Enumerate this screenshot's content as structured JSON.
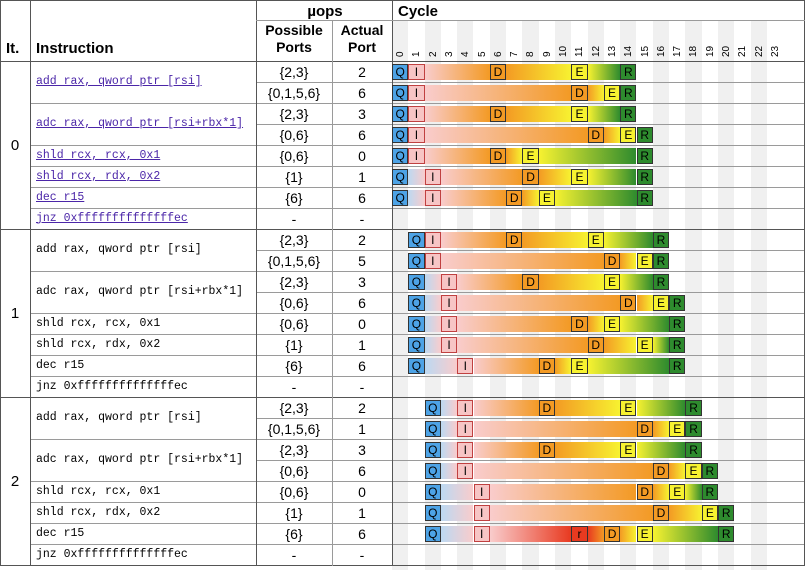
{
  "header": {
    "iteration": "It.",
    "instruction": "Instruction",
    "uops": "µops",
    "possible_ports": "Possible Ports",
    "actual_port": "Actual Port",
    "cycle": "Cycle"
  },
  "cycles": [
    "0",
    "1",
    "2",
    "3",
    "4",
    "5",
    "6",
    "7",
    "8",
    "9",
    "10",
    "11",
    "12",
    "13",
    "14",
    "15",
    "16",
    "17",
    "18",
    "19",
    "20",
    "21",
    "22",
    "23"
  ],
  "iterations": [
    {
      "label": "0",
      "instructions": [
        {
          "text": "add rax, qword ptr [rsi]",
          "link": true,
          "uops": [
            {
              "ports": "{2,3}",
              "port": "2",
              "events": [
                {
                  "c": 0,
                  "t": "Q"
                },
                {
                  "c": 1,
                  "t": "I"
                },
                {
                  "c": 6,
                  "t": "D"
                },
                {
                  "c": 11,
                  "t": "E"
                },
                {
                  "c": 14,
                  "t": "R"
                }
              ]
            },
            {
              "ports": "{0,1,5,6}",
              "port": "6",
              "events": [
                {
                  "c": 0,
                  "t": "Q"
                },
                {
                  "c": 1,
                  "t": "I"
                },
                {
                  "c": 11,
                  "t": "D"
                },
                {
                  "c": 13,
                  "t": "E"
                },
                {
                  "c": 14,
                  "t": "R"
                }
              ]
            }
          ]
        },
        {
          "text": "adc rax, qword ptr [rsi+rbx*1]",
          "link": true,
          "uops": [
            {
              "ports": "{2,3}",
              "port": "3",
              "events": [
                {
                  "c": 0,
                  "t": "Q"
                },
                {
                  "c": 1,
                  "t": "I"
                },
                {
                  "c": 6,
                  "t": "D"
                },
                {
                  "c": 11,
                  "t": "E"
                },
                {
                  "c": 14,
                  "t": "R"
                }
              ]
            },
            {
              "ports": "{0,6}",
              "port": "6",
              "events": [
                {
                  "c": 0,
                  "t": "Q"
                },
                {
                  "c": 1,
                  "t": "I"
                },
                {
                  "c": 12,
                  "t": "D"
                },
                {
                  "c": 14,
                  "t": "E"
                },
                {
                  "c": 15,
                  "t": "R"
                }
              ]
            }
          ]
        },
        {
          "text": "shld rcx, rcx, 0x1",
          "link": true,
          "uops": [
            {
              "ports": "{0,6}",
              "port": "0",
              "events": [
                {
                  "c": 0,
                  "t": "Q"
                },
                {
                  "c": 1,
                  "t": "I"
                },
                {
                  "c": 6,
                  "t": "D"
                },
                {
                  "c": 8,
                  "t": "E"
                },
                {
                  "c": 15,
                  "t": "R"
                }
              ]
            }
          ]
        },
        {
          "text": "shld rcx, rdx, 0x2",
          "link": true,
          "uops": [
            {
              "ports": "{1}",
              "port": "1",
              "events": [
                {
                  "c": 0,
                  "t": "Q"
                },
                {
                  "c": 2,
                  "t": "I"
                },
                {
                  "c": 8,
                  "t": "D"
                },
                {
                  "c": 11,
                  "t": "E"
                },
                {
                  "c": 15,
                  "t": "R"
                }
              ]
            }
          ]
        },
        {
          "text": "dec r15",
          "link": true,
          "uops": [
            {
              "ports": "{6}",
              "port": "6",
              "events": [
                {
                  "c": 0,
                  "t": "Q"
                },
                {
                  "c": 2,
                  "t": "I"
                },
                {
                  "c": 7,
                  "t": "D"
                },
                {
                  "c": 9,
                  "t": "E"
                },
                {
                  "c": 15,
                  "t": "R"
                }
              ]
            }
          ]
        },
        {
          "text": "jnz 0xffffffffffffffec",
          "link": true,
          "uops": [
            {
              "ports": "-",
              "port": "-",
              "events": []
            }
          ]
        }
      ]
    },
    {
      "label": "1",
      "instructions": [
        {
          "text": "add rax, qword ptr [rsi]",
          "link": false,
          "uops": [
            {
              "ports": "{2,3}",
              "port": "2",
              "events": [
                {
                  "c": 1,
                  "t": "Q"
                },
                {
                  "c": 2,
                  "t": "I"
                },
                {
                  "c": 7,
                  "t": "D"
                },
                {
                  "c": 12,
                  "t": "E"
                },
                {
                  "c": 16,
                  "t": "R"
                }
              ]
            },
            {
              "ports": "{0,1,5,6}",
              "port": "5",
              "events": [
                {
                  "c": 1,
                  "t": "Q"
                },
                {
                  "c": 2,
                  "t": "I"
                },
                {
                  "c": 13,
                  "t": "D"
                },
                {
                  "c": 15,
                  "t": "E"
                },
                {
                  "c": 16,
                  "t": "R"
                }
              ]
            }
          ]
        },
        {
          "text": "adc rax, qword ptr [rsi+rbx*1]",
          "link": false,
          "uops": [
            {
              "ports": "{2,3}",
              "port": "3",
              "events": [
                {
                  "c": 1,
                  "t": "Q"
                },
                {
                  "c": 3,
                  "t": "I"
                },
                {
                  "c": 8,
                  "t": "D"
                },
                {
                  "c": 13,
                  "t": "E"
                },
                {
                  "c": 16,
                  "t": "R"
                }
              ]
            },
            {
              "ports": "{0,6}",
              "port": "6",
              "events": [
                {
                  "c": 1,
                  "t": "Q"
                },
                {
                  "c": 3,
                  "t": "I"
                },
                {
                  "c": 14,
                  "t": "D"
                },
                {
                  "c": 16,
                  "t": "E"
                },
                {
                  "c": 17,
                  "t": "R"
                }
              ]
            }
          ]
        },
        {
          "text": "shld rcx, rcx, 0x1",
          "link": false,
          "uops": [
            {
              "ports": "{0,6}",
              "port": "0",
              "events": [
                {
                  "c": 1,
                  "t": "Q"
                },
                {
                  "c": 3,
                  "t": "I"
                },
                {
                  "c": 11,
                  "t": "D"
                },
                {
                  "c": 13,
                  "t": "E"
                },
                {
                  "c": 17,
                  "t": "R"
                }
              ]
            }
          ]
        },
        {
          "text": "shld rcx, rdx, 0x2",
          "link": false,
          "uops": [
            {
              "ports": "{1}",
              "port": "1",
              "events": [
                {
                  "c": 1,
                  "t": "Q"
                },
                {
                  "c": 3,
                  "t": "I"
                },
                {
                  "c": 12,
                  "t": "D"
                },
                {
                  "c": 15,
                  "t": "E"
                },
                {
                  "c": 17,
                  "t": "R"
                }
              ]
            }
          ]
        },
        {
          "text": "dec r15",
          "link": false,
          "uops": [
            {
              "ports": "{6}",
              "port": "6",
              "events": [
                {
                  "c": 1,
                  "t": "Q"
                },
                {
                  "c": 4,
                  "t": "I"
                },
                {
                  "c": 9,
                  "t": "D"
                },
                {
                  "c": 11,
                  "t": "E"
                },
                {
                  "c": 17,
                  "t": "R"
                }
              ]
            }
          ]
        },
        {
          "text": "jnz 0xffffffffffffffec",
          "link": false,
          "uops": [
            {
              "ports": "-",
              "port": "-",
              "events": []
            }
          ]
        }
      ]
    },
    {
      "label": "2",
      "instructions": [
        {
          "text": "add rax, qword ptr [rsi]",
          "link": false,
          "uops": [
            {
              "ports": "{2,3}",
              "port": "2",
              "events": [
                {
                  "c": 2,
                  "t": "Q"
                },
                {
                  "c": 4,
                  "t": "I"
                },
                {
                  "c": 9,
                  "t": "D"
                },
                {
                  "c": 14,
                  "t": "E"
                },
                {
                  "c": 18,
                  "t": "R"
                }
              ]
            },
            {
              "ports": "{0,1,5,6}",
              "port": "1",
              "events": [
                {
                  "c": 2,
                  "t": "Q"
                },
                {
                  "c": 4,
                  "t": "I"
                },
                {
                  "c": 15,
                  "t": "D"
                },
                {
                  "c": 17,
                  "t": "E"
                },
                {
                  "c": 18,
                  "t": "R"
                }
              ]
            }
          ]
        },
        {
          "text": "adc rax, qword ptr [rsi+rbx*1]",
          "link": false,
          "uops": [
            {
              "ports": "{2,3}",
              "port": "3",
              "events": [
                {
                  "c": 2,
                  "t": "Q"
                },
                {
                  "c": 4,
                  "t": "I"
                },
                {
                  "c": 9,
                  "t": "D"
                },
                {
                  "c": 14,
                  "t": "E"
                },
                {
                  "c": 18,
                  "t": "R"
                }
              ]
            },
            {
              "ports": "{0,6}",
              "port": "6",
              "events": [
                {
                  "c": 2,
                  "t": "Q"
                },
                {
                  "c": 4,
                  "t": "I"
                },
                {
                  "c": 16,
                  "t": "D"
                },
                {
                  "c": 18,
                  "t": "E"
                },
                {
                  "c": 19,
                  "t": "R"
                }
              ]
            }
          ]
        },
        {
          "text": "shld rcx, rcx, 0x1",
          "link": false,
          "uops": [
            {
              "ports": "{0,6}",
              "port": "0",
              "events": [
                {
                  "c": 2,
                  "t": "Q"
                },
                {
                  "c": 5,
                  "t": "I"
                },
                {
                  "c": 15,
                  "t": "D"
                },
                {
                  "c": 17,
                  "t": "E"
                },
                {
                  "c": 19,
                  "t": "R"
                }
              ]
            }
          ]
        },
        {
          "text": "shld rcx, rdx, 0x2",
          "link": false,
          "uops": [
            {
              "ports": "{1}",
              "port": "1",
              "events": [
                {
                  "c": 2,
                  "t": "Q"
                },
                {
                  "c": 5,
                  "t": "I"
                },
                {
                  "c": 16,
                  "t": "D"
                },
                {
                  "c": 19,
                  "t": "E"
                },
                {
                  "c": 20,
                  "t": "R"
                }
              ]
            }
          ]
        },
        {
          "text": "dec r15",
          "link": false,
          "uops": [
            {
              "ports": "{6}",
              "port": "6",
              "events": [
                {
                  "c": 2,
                  "t": "Q"
                },
                {
                  "c": 5,
                  "t": "I"
                },
                {
                  "c": 11,
                  "t": "r"
                },
                {
                  "c": 13,
                  "t": "D"
                },
                {
                  "c": 15,
                  "t": "E"
                },
                {
                  "c": 20,
                  "t": "R"
                }
              ]
            }
          ]
        },
        {
          "text": "jnz 0xffffffffffffffec",
          "link": false,
          "uops": [
            {
              "ports": "-",
              "port": "-",
              "events": []
            }
          ]
        }
      ]
    }
  ],
  "colors": {
    "queue": "#4da3e6",
    "issue": "#f7c5c5",
    "dispatch": "#f39a24",
    "execute": "#f7f230",
    "retire": "#2e8b2e",
    "ready": "#e83a20",
    "gridline": "#9a9a9a"
  }
}
